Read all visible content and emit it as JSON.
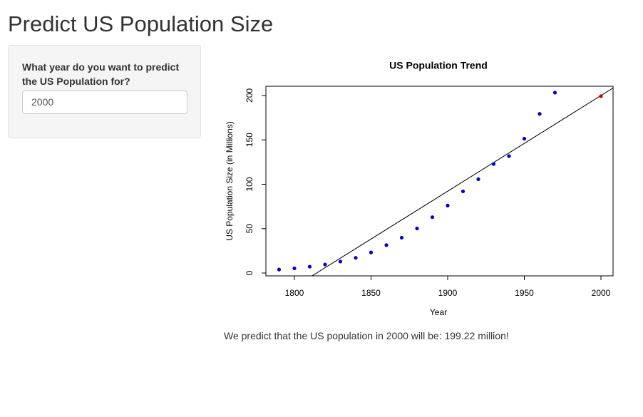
{
  "header": {
    "title": "Predict US Population Size"
  },
  "sidebar": {
    "label": "What year do you want to predict the US Population for?",
    "input_value": "2000"
  },
  "chart_data": {
    "type": "scatter",
    "title": "US Population Trend",
    "x_label": "Year",
    "y_label": "US Population Size (in Millions)",
    "series": [
      {
        "color": "#0000cd",
        "x": [
          1790,
          1800,
          1810,
          1820,
          1830,
          1840,
          1850,
          1860,
          1870,
          1880,
          1890,
          1900,
          1910,
          1920,
          1930,
          1940,
          1950,
          1960,
          1970
        ],
        "values": [
          3.9,
          5.3,
          7.2,
          9.6,
          12.9,
          17.1,
          23.2,
          31.4,
          39.8,
          50.2,
          62.9,
          76.0,
          92.0,
          105.7,
          122.8,
          131.7,
          151.3,
          179.3,
          203.2
        ]
      },
      {
        "color": "#cd0000",
        "x": [
          2000
        ],
        "values": [
          199.22
        ]
      }
    ],
    "trend_line": {
      "color": "#000000",
      "x": [
        1810,
        2010
      ],
      "values": [
        -4.8,
        210.7
      ]
    },
    "xlim": [
      1781.4,
      2007.9
    ],
    "ylim": [
      -3.2,
      210.4
    ],
    "xticks": [
      1800,
      1850,
      1900,
      1950,
      2000
    ],
    "yticks": [
      0,
      50,
      100,
      150,
      200
    ],
    "grid": false
  },
  "result": {
    "text": "We predict that the US population in 2000 will be: 199.22 million!"
  }
}
